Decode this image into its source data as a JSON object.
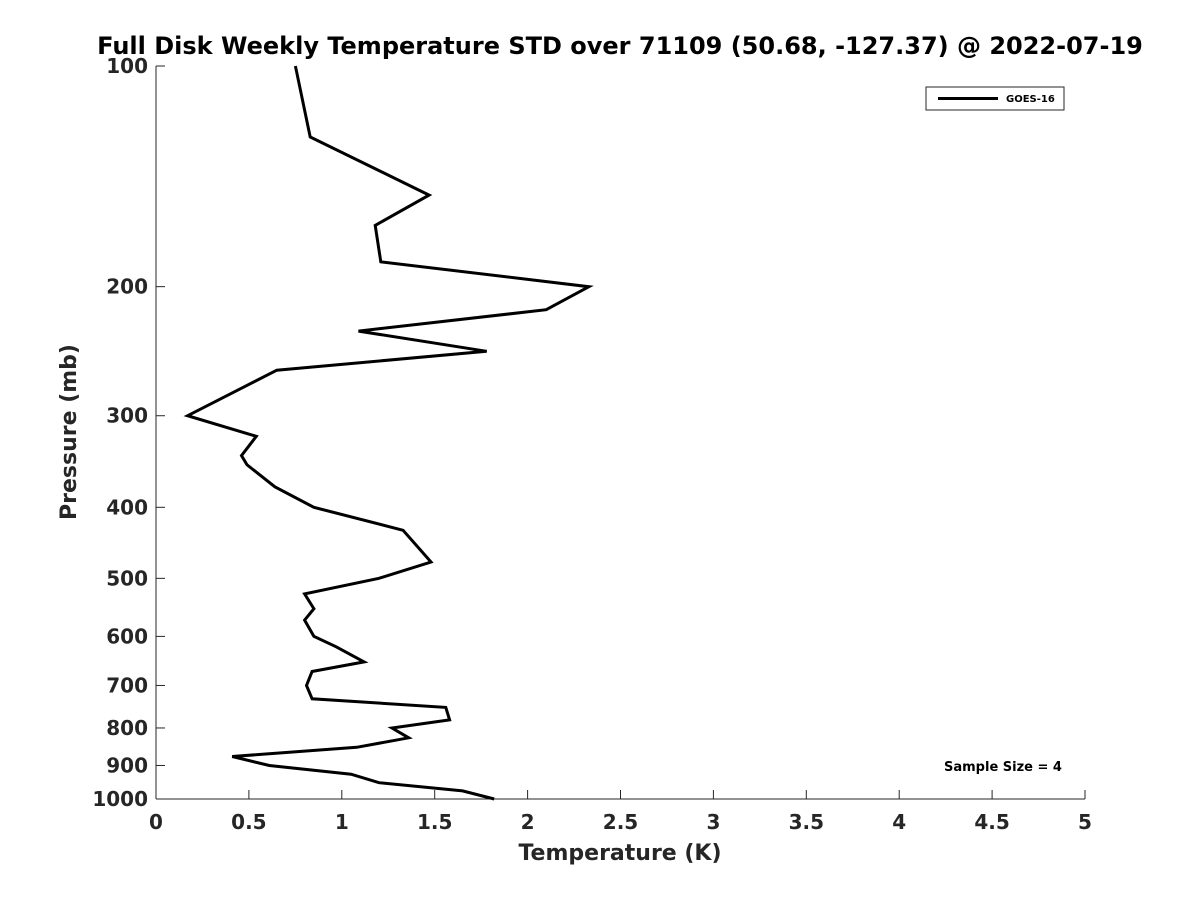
{
  "chart_data": {
    "type": "line",
    "title": "Full Disk Weekly Temperature STD over 71109 (50.68, -127.37) @ 2022-07-19",
    "xlabel": "Temperature (K)",
    "ylabel": "Pressure (mb)",
    "xlim": [
      0,
      5
    ],
    "ylim": [
      100,
      1000
    ],
    "y_scale": "log",
    "y_reversed": true,
    "grid": false,
    "x_ticks": [
      "0",
      "0.5",
      "1",
      "1.5",
      "2",
      "2.5",
      "3",
      "3.5",
      "4",
      "4.5",
      "5"
    ],
    "y_ticks": [
      "100",
      "200",
      "300",
      "400",
      "500",
      "600",
      "700",
      "800",
      "900",
      "1000"
    ],
    "legend_position": "top-right",
    "series": [
      {
        "name": "GOES-16",
        "color": "#000000",
        "points": [
          {
            "p": 100,
            "t": 0.75
          },
          {
            "p": 125,
            "t": 0.83
          },
          {
            "p": 150,
            "t": 1.47
          },
          {
            "p": 165,
            "t": 1.18
          },
          {
            "p": 185,
            "t": 1.21
          },
          {
            "p": 200,
            "t": 2.33
          },
          {
            "p": 215,
            "t": 2.1
          },
          {
            "p": 230,
            "t": 1.09
          },
          {
            "p": 245,
            "t": 1.78
          },
          {
            "p": 260,
            "t": 0.65
          },
          {
            "p": 300,
            "t": 0.17
          },
          {
            "p": 320,
            "t": 0.54
          },
          {
            "p": 340,
            "t": 0.46
          },
          {
            "p": 350,
            "t": 0.49
          },
          {
            "p": 375,
            "t": 0.64
          },
          {
            "p": 400,
            "t": 0.85
          },
          {
            "p": 430,
            "t": 1.33
          },
          {
            "p": 475,
            "t": 1.48
          },
          {
            "p": 500,
            "t": 1.2
          },
          {
            "p": 525,
            "t": 0.8
          },
          {
            "p": 550,
            "t": 0.85
          },
          {
            "p": 570,
            "t": 0.8
          },
          {
            "p": 600,
            "t": 0.85
          },
          {
            "p": 620,
            "t": 0.97
          },
          {
            "p": 650,
            "t": 1.12
          },
          {
            "p": 670,
            "t": 0.84
          },
          {
            "p": 700,
            "t": 0.81
          },
          {
            "p": 730,
            "t": 0.84
          },
          {
            "p": 750,
            "t": 1.56
          },
          {
            "p": 780,
            "t": 1.58
          },
          {
            "p": 800,
            "t": 1.27
          },
          {
            "p": 825,
            "t": 1.36
          },
          {
            "p": 850,
            "t": 1.08
          },
          {
            "p": 875,
            "t": 0.41
          },
          {
            "p": 900,
            "t": 0.61
          },
          {
            "p": 925,
            "t": 1.05
          },
          {
            "p": 950,
            "t": 1.2
          },
          {
            "p": 975,
            "t": 1.65
          },
          {
            "p": 1000,
            "t": 1.82
          }
        ]
      }
    ],
    "annotations": [
      "Sample Size = 4"
    ]
  }
}
